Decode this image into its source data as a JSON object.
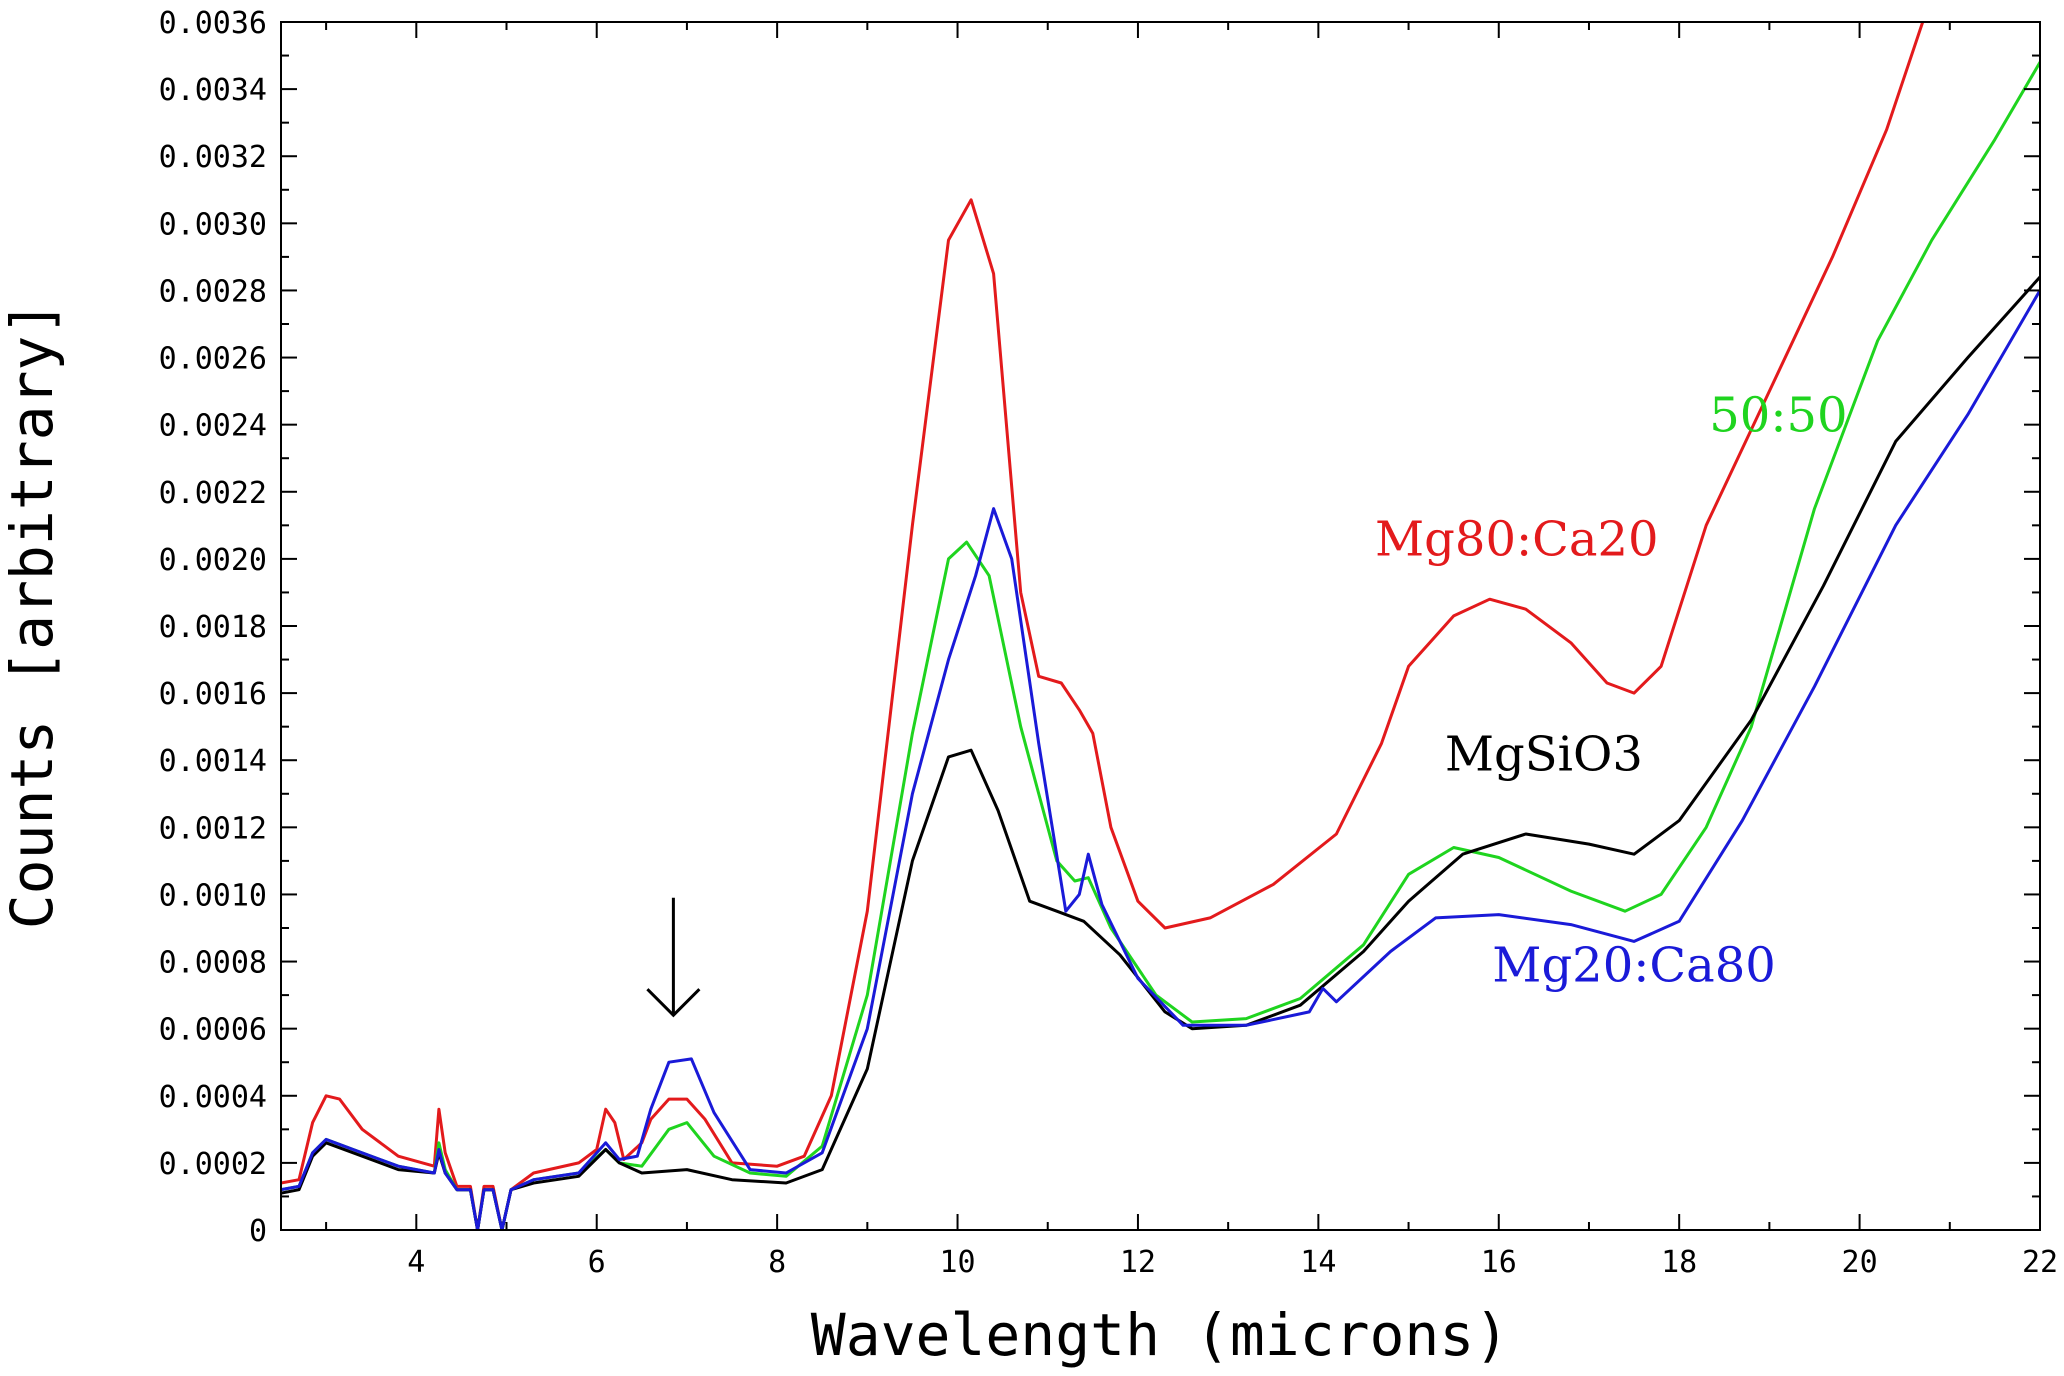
{
  "chart_data": {
    "type": "line",
    "title": "",
    "xlabel": "Wavelength (microns)",
    "ylabel": "Counts [arbitrary]",
    "xlim": [
      2.5,
      22
    ],
    "ylim": [
      0,
      0.0036
    ],
    "grid": false,
    "x_ticks": [
      4,
      6,
      8,
      10,
      12,
      14,
      16,
      18,
      20,
      22
    ],
    "x_tick_labels": [
      "4",
      "6",
      "8",
      "10",
      "12",
      "14",
      "16",
      "18",
      "20",
      "22"
    ],
    "y_ticks": [
      0,
      0.0002,
      0.0004,
      0.0006,
      0.0008,
      0.001,
      0.0012,
      0.0014,
      0.0016,
      0.0018,
      0.002,
      0.0022,
      0.0024,
      0.0026,
      0.0028,
      0.003,
      0.0032,
      0.0034,
      0.0036
    ],
    "y_tick_labels": [
      "0",
      "0.0002",
      "0.0004",
      "0.0006",
      "0.0008",
      "0.0010",
      "0.0012",
      "0.0014",
      "0.0016",
      "0.0018",
      "0.0020",
      "0.0022",
      "0.0024",
      "0.0026",
      "0.0028",
      "0.0030",
      "0.0032",
      "0.0034",
      "0.0036"
    ],
    "annotations": [
      {
        "type": "arrow",
        "x": 6.85,
        "y_from": 0.00099,
        "y_to": 0.00064,
        "color": "#000000"
      }
    ],
    "series": [
      {
        "name": "Mg80:Ca20",
        "label": "Mg80:Ca20",
        "color": "#e31a1c",
        "label_x": 16.2,
        "label_y": 0.00201,
        "points": [
          [
            2.5,
            0.00014
          ],
          [
            2.7,
            0.00015
          ],
          [
            2.85,
            0.00032
          ],
          [
            3.0,
            0.0004
          ],
          [
            3.15,
            0.00039
          ],
          [
            3.4,
            0.0003
          ],
          [
            3.8,
            0.00022
          ],
          [
            4.2,
            0.00019
          ],
          [
            4.25,
            0.00036
          ],
          [
            4.32,
            0.00023
          ],
          [
            4.45,
            0.00013
          ],
          [
            4.6,
            0.00013
          ],
          [
            4.68,
            0.0
          ],
          [
            4.75,
            0.00013
          ],
          [
            4.85,
            0.00013
          ],
          [
            4.95,
            0.0
          ],
          [
            5.05,
            0.00012
          ],
          [
            5.3,
            0.00017
          ],
          [
            5.8,
            0.0002
          ],
          [
            6.0,
            0.00024
          ],
          [
            6.1,
            0.00036
          ],
          [
            6.2,
            0.00032
          ],
          [
            6.3,
            0.00021
          ],
          [
            6.5,
            0.00026
          ],
          [
            6.6,
            0.00033
          ],
          [
            6.8,
            0.00039
          ],
          [
            7.0,
            0.00039
          ],
          [
            7.2,
            0.00033
          ],
          [
            7.5,
            0.0002
          ],
          [
            8.0,
            0.00019
          ],
          [
            8.3,
            0.00022
          ],
          [
            8.6,
            0.0004
          ],
          [
            9.0,
            0.00095
          ],
          [
            9.5,
            0.0021
          ],
          [
            9.9,
            0.00295
          ],
          [
            10.15,
            0.00307
          ],
          [
            10.4,
            0.00285
          ],
          [
            10.7,
            0.0019
          ],
          [
            10.9,
            0.00165
          ],
          [
            11.15,
            0.00163
          ],
          [
            11.35,
            0.00155
          ],
          [
            11.5,
            0.00148
          ],
          [
            11.7,
            0.0012
          ],
          [
            12.0,
            0.00098
          ],
          [
            12.3,
            0.0009
          ],
          [
            12.8,
            0.00093
          ],
          [
            13.5,
            0.00103
          ],
          [
            14.2,
            0.00118
          ],
          [
            14.7,
            0.00145
          ],
          [
            15.0,
            0.00168
          ],
          [
            15.5,
            0.00183
          ],
          [
            15.9,
            0.00188
          ],
          [
            16.3,
            0.00185
          ],
          [
            16.8,
            0.00175
          ],
          [
            17.2,
            0.00163
          ],
          [
            17.5,
            0.0016
          ],
          [
            17.8,
            0.00168
          ],
          [
            18.3,
            0.0021
          ],
          [
            19.0,
            0.0025
          ],
          [
            19.7,
            0.0029
          ],
          [
            20.3,
            0.00328
          ],
          [
            20.7,
            0.0036
          ]
        ]
      },
      {
        "name": "50:50",
        "label": "50:50",
        "color": "#1fd41f",
        "label_x": 19.1,
        "label_y": 0.00238,
        "points": [
          [
            2.5,
            0.00012
          ],
          [
            2.7,
            0.00013
          ],
          [
            2.85,
            0.00023
          ],
          [
            3.0,
            0.00027
          ],
          [
            3.3,
            0.00024
          ],
          [
            3.8,
            0.00019
          ],
          [
            4.2,
            0.00017
          ],
          [
            4.25,
            0.00026
          ],
          [
            4.32,
            0.00018
          ],
          [
            4.45,
            0.00012
          ],
          [
            4.6,
            0.00012
          ],
          [
            4.68,
            0.0
          ],
          [
            4.75,
            0.00012
          ],
          [
            4.85,
            0.00012
          ],
          [
            4.95,
            0.0
          ],
          [
            5.05,
            0.00012
          ],
          [
            5.3,
            0.00015
          ],
          [
            5.8,
            0.00017
          ],
          [
            6.1,
            0.00024
          ],
          [
            6.25,
            0.0002
          ],
          [
            6.5,
            0.00019
          ],
          [
            6.8,
            0.0003
          ],
          [
            7.0,
            0.00032
          ],
          [
            7.3,
            0.00022
          ],
          [
            7.7,
            0.00017
          ],
          [
            8.1,
            0.00016
          ],
          [
            8.5,
            0.00025
          ],
          [
            9.0,
            0.0007
          ],
          [
            9.5,
            0.00148
          ],
          [
            9.9,
            0.002
          ],
          [
            10.1,
            0.00205
          ],
          [
            10.35,
            0.00195
          ],
          [
            10.7,
            0.0015
          ],
          [
            11.1,
            0.0011
          ],
          [
            11.3,
            0.00104
          ],
          [
            11.45,
            0.00105
          ],
          [
            11.7,
            0.0009
          ],
          [
            12.2,
            0.0007
          ],
          [
            12.6,
            0.00062
          ],
          [
            13.2,
            0.00063
          ],
          [
            13.8,
            0.00069
          ],
          [
            14.5,
            0.00085
          ],
          [
            15.0,
            0.00106
          ],
          [
            15.5,
            0.00114
          ],
          [
            16.0,
            0.00111
          ],
          [
            16.8,
            0.00101
          ],
          [
            17.4,
            0.00095
          ],
          [
            17.8,
            0.001
          ],
          [
            18.3,
            0.0012
          ],
          [
            18.8,
            0.0015
          ],
          [
            19.5,
            0.00215
          ],
          [
            20.2,
            0.00265
          ],
          [
            20.8,
            0.00295
          ],
          [
            21.5,
            0.00325
          ],
          [
            22.0,
            0.00348
          ]
        ]
      },
      {
        "name": "MgSiO3",
        "label": "MgSiO3",
        "color": "#000000",
        "label_x": 16.5,
        "label_y": 0.00137,
        "points": [
          [
            2.5,
            0.00011
          ],
          [
            2.7,
            0.00012
          ],
          [
            2.85,
            0.00022
          ],
          [
            3.0,
            0.00026
          ],
          [
            3.3,
            0.00023
          ],
          [
            3.8,
            0.00018
          ],
          [
            4.2,
            0.00017
          ],
          [
            4.25,
            0.00023
          ],
          [
            4.32,
            0.00017
          ],
          [
            4.45,
            0.00012
          ],
          [
            4.6,
            0.00012
          ],
          [
            4.68,
            0.0
          ],
          [
            4.75,
            0.00012
          ],
          [
            4.85,
            0.00012
          ],
          [
            4.95,
            0.0
          ],
          [
            5.05,
            0.00012
          ],
          [
            5.3,
            0.00014
          ],
          [
            5.8,
            0.00016
          ],
          [
            6.1,
            0.00024
          ],
          [
            6.25,
            0.0002
          ],
          [
            6.5,
            0.00017
          ],
          [
            7.0,
            0.00018
          ],
          [
            7.5,
            0.00015
          ],
          [
            8.1,
            0.00014
          ],
          [
            8.5,
            0.00018
          ],
          [
            9.0,
            0.00048
          ],
          [
            9.5,
            0.0011
          ],
          [
            9.9,
            0.00141
          ],
          [
            10.15,
            0.00143
          ],
          [
            10.45,
            0.00125
          ],
          [
            10.8,
            0.00098
          ],
          [
            11.1,
            0.00095
          ],
          [
            11.4,
            0.00092
          ],
          [
            11.8,
            0.00082
          ],
          [
            12.3,
            0.00065
          ],
          [
            12.6,
            0.0006
          ],
          [
            13.2,
            0.00061
          ],
          [
            13.8,
            0.00067
          ],
          [
            14.5,
            0.00083
          ],
          [
            15.0,
            0.00098
          ],
          [
            15.6,
            0.00112
          ],
          [
            16.3,
            0.00118
          ],
          [
            17.0,
            0.00115
          ],
          [
            17.5,
            0.00112
          ],
          [
            18.0,
            0.00122
          ],
          [
            18.8,
            0.00152
          ],
          [
            19.6,
            0.00192
          ],
          [
            20.4,
            0.00235
          ],
          [
            21.2,
            0.0026
          ],
          [
            22.0,
            0.00284
          ]
        ]
      },
      {
        "name": "Mg20:Ca80",
        "label": "Mg20:Ca80",
        "color": "#1a1ad8",
        "label_x": 17.5,
        "label_y": 0.00074,
        "points": [
          [
            2.5,
            0.00012
          ],
          [
            2.7,
            0.00013
          ],
          [
            2.85,
            0.00023
          ],
          [
            3.0,
            0.00027
          ],
          [
            3.3,
            0.00024
          ],
          [
            3.8,
            0.00019
          ],
          [
            4.2,
            0.00017
          ],
          [
            4.25,
            0.00024
          ],
          [
            4.32,
            0.00017
          ],
          [
            4.45,
            0.00012
          ],
          [
            4.6,
            0.00012
          ],
          [
            4.68,
            0.0
          ],
          [
            4.75,
            0.00012
          ],
          [
            4.85,
            0.00012
          ],
          [
            4.95,
            0.0
          ],
          [
            5.05,
            0.00012
          ],
          [
            5.3,
            0.00015
          ],
          [
            5.8,
            0.00017
          ],
          [
            6.1,
            0.00026
          ],
          [
            6.25,
            0.00021
          ],
          [
            6.45,
            0.00022
          ],
          [
            6.6,
            0.00036
          ],
          [
            6.8,
            0.0005
          ],
          [
            7.05,
            0.00051
          ],
          [
            7.3,
            0.00035
          ],
          [
            7.7,
            0.00018
          ],
          [
            8.1,
            0.00017
          ],
          [
            8.5,
            0.00023
          ],
          [
            9.0,
            0.0006
          ],
          [
            9.5,
            0.0013
          ],
          [
            9.9,
            0.0017
          ],
          [
            10.2,
            0.00195
          ],
          [
            10.4,
            0.00215
          ],
          [
            10.6,
            0.002
          ],
          [
            10.9,
            0.00145
          ],
          [
            11.2,
            0.00095
          ],
          [
            11.35,
            0.001
          ],
          [
            11.45,
            0.00112
          ],
          [
            11.6,
            0.00097
          ],
          [
            12.0,
            0.00075
          ],
          [
            12.5,
            0.00061
          ],
          [
            13.2,
            0.00061
          ],
          [
            13.9,
            0.00065
          ],
          [
            14.05,
            0.00072
          ],
          [
            14.2,
            0.00068
          ],
          [
            14.8,
            0.00083
          ],
          [
            15.3,
            0.00093
          ],
          [
            16.0,
            0.00094
          ],
          [
            16.8,
            0.00091
          ],
          [
            17.5,
            0.00086
          ],
          [
            18.0,
            0.00092
          ],
          [
            18.7,
            0.00122
          ],
          [
            19.5,
            0.00162
          ],
          [
            20.4,
            0.0021
          ],
          [
            21.2,
            0.00243
          ],
          [
            22.0,
            0.0028
          ]
        ]
      }
    ]
  }
}
